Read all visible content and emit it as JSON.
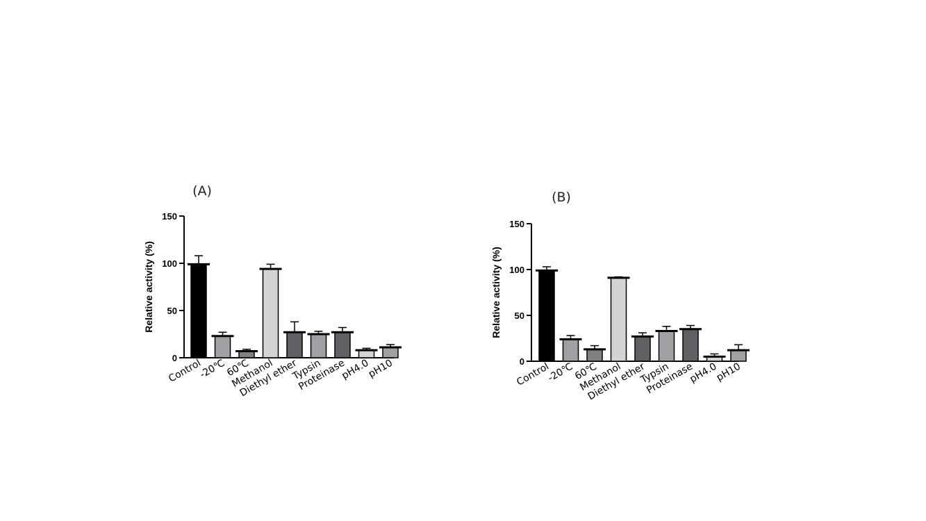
{
  "chart_data": [
    {
      "type": "bar",
      "panel_label": "(A)",
      "title": "",
      "xlabel": "",
      "ylabel": "Relative activity (%)",
      "ylim": [
        0,
        150
      ],
      "yticks": [
        "0",
        "50",
        "100",
        "150"
      ],
      "categories": [
        "Control",
        "-20℃",
        "60℃",
        "Methanol",
        "Diethyl ether",
        "Typsin",
        "Proteinase",
        "pH4.0",
        "pH10"
      ],
      "values": [
        99,
        23,
        7,
        94,
        27,
        25,
        27,
        8,
        11
      ],
      "errors": [
        9,
        4,
        2,
        5,
        11,
        3,
        5,
        2,
        3
      ],
      "colors": [
        "#000000",
        "#a0a0a4",
        "#808084",
        "#d4d4d4",
        "#606064",
        "#a0a0a4",
        "#606064",
        "#d4d4d4",
        "#a0a0a4"
      ],
      "grid": false,
      "legend": "none"
    },
    {
      "type": "bar",
      "panel_label": "(B)",
      "title": "",
      "xlabel": "",
      "ylabel": "Relative activity (%)",
      "ylim": [
        0,
        150
      ],
      "yticks": [
        "0",
        "50",
        "100",
        "150"
      ],
      "categories": [
        "Control",
        "-20℃",
        "60℃",
        "Methanol",
        "Diethyl ether",
        "Typsin",
        "Proteinase",
        "pH4.0",
        "pH10"
      ],
      "values": [
        99,
        24,
        13,
        91,
        27,
        33,
        35,
        5,
        12
      ],
      "errors": [
        4,
        4,
        4,
        1,
        4,
        5,
        4,
        3,
        6
      ],
      "colors": [
        "#000000",
        "#a0a0a4",
        "#808084",
        "#d4d4d4",
        "#606064",
        "#a0a0a4",
        "#606064",
        "#d4d4d4",
        "#a0a0a4"
      ],
      "grid": false,
      "legend": "none"
    }
  ]
}
